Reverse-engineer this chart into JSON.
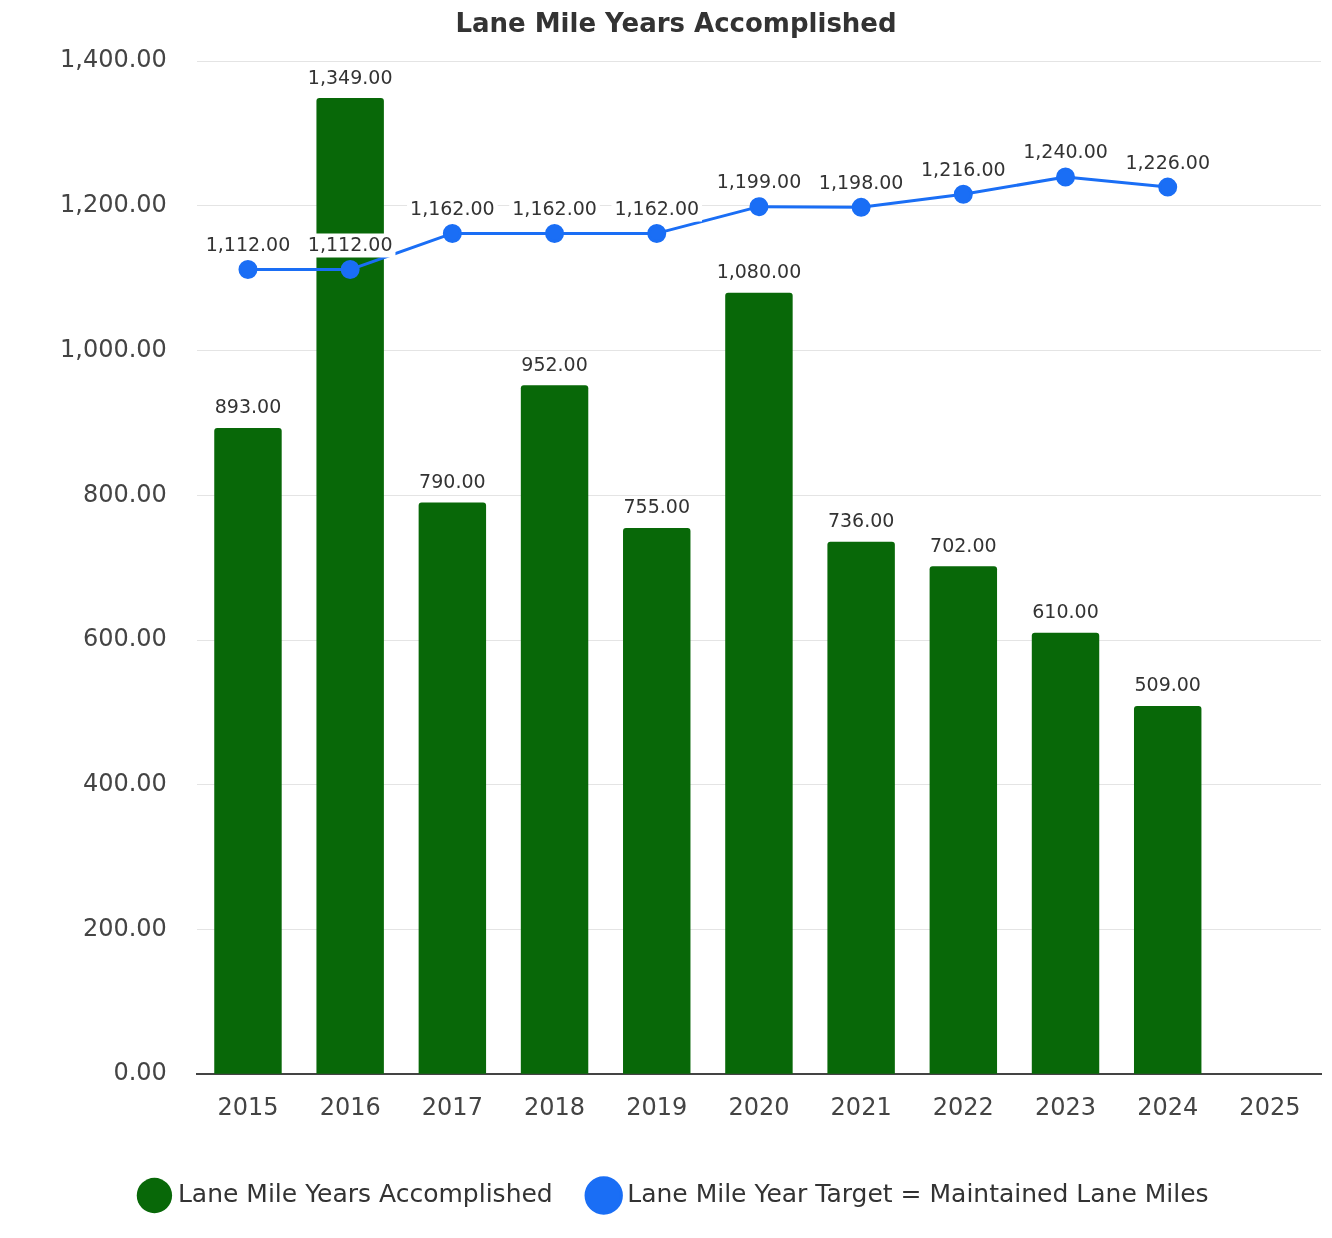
{
  "chart_data": {
    "type": "bar",
    "title": "Lane Mile Years Accomplished",
    "categories": [
      "2015",
      "2016",
      "2017",
      "2018",
      "2019",
      "2020",
      "2021",
      "2022",
      "2023",
      "2024",
      "2025"
    ],
    "series": [
      {
        "name": "Lane Mile Years Accomplished",
        "color": "#086808",
        "values": [
          893,
          1349,
          790,
          952,
          755,
          1080,
          736,
          702,
          610,
          509,
          null
        ],
        "value_labels": [
          "893.00",
          "1,349.00",
          "790.00",
          "952.00",
          "755.00",
          "1,080.00",
          "736.00",
          "702.00",
          "610.00",
          "509.00",
          null
        ]
      },
      {
        "name": "Lane Mile Year Target = Maintained Lane Miles",
        "type": "line",
        "color": "#1a6ef5",
        "marker": "circle",
        "values": [
          1112,
          1112,
          1162,
          1162,
          1162,
          1199,
          1198,
          1216,
          1240,
          1226,
          null
        ],
        "value_labels": [
          "1,112.00",
          "1,112.00",
          "1,162.00",
          "1,162.00",
          "1,162.00",
          "1,199.00",
          "1,198.00",
          "1,216.00",
          "1,240.00",
          "1,226.00",
          null
        ]
      }
    ],
    "ylim": [
      0,
      1400
    ],
    "yticks": [
      {
        "value": 0,
        "label": "0.00"
      },
      {
        "value": 200,
        "label": "200.00"
      },
      {
        "value": 400,
        "label": "400.00"
      },
      {
        "value": 600,
        "label": "600.00"
      },
      {
        "value": 800,
        "label": "800.00"
      },
      {
        "value": 1000,
        "label": "1,000.00"
      },
      {
        "value": 1200,
        "label": "1,200.00"
      },
      {
        "value": 1400,
        "label": "1,400.00"
      }
    ],
    "grid": "y",
    "legend": "bottom"
  }
}
